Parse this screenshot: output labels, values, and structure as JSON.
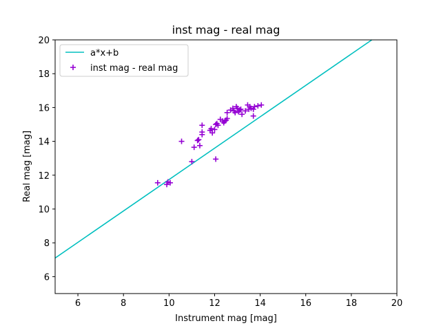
{
  "chart_data": {
    "type": "scatter",
    "title": "inst mag - real mag",
    "xlabel": "Instrument mag [mag]",
    "ylabel": "Real mag [mag]",
    "xlim": [
      5,
      20
    ],
    "ylim": [
      5,
      20
    ],
    "xticks": [
      6,
      8,
      10,
      12,
      14,
      16,
      18,
      20
    ],
    "yticks": [
      6,
      8,
      10,
      12,
      14,
      16,
      18,
      20
    ],
    "grid": false,
    "legend_placement": "upper-left",
    "line": {
      "name": "a*x+b",
      "color": "#00bfbf",
      "x": [
        5,
        18.9
      ],
      "y": [
        7.1,
        20.0
      ]
    },
    "series": [
      {
        "name": "inst mag - real mag",
        "color": "#9400d3",
        "marker": "+",
        "points": [
          [
            9.5,
            11.55
          ],
          [
            9.9,
            11.45
          ],
          [
            9.95,
            11.6
          ],
          [
            10.05,
            11.55
          ],
          [
            10.55,
            14.0
          ],
          [
            11.0,
            12.8
          ],
          [
            11.1,
            13.65
          ],
          [
            11.25,
            14.05
          ],
          [
            11.3,
            14.1
          ],
          [
            11.35,
            13.75
          ],
          [
            11.45,
            14.4
          ],
          [
            11.45,
            14.55
          ],
          [
            11.45,
            14.95
          ],
          [
            11.8,
            14.65
          ],
          [
            11.85,
            14.75
          ],
          [
            11.9,
            14.5
          ],
          [
            12.0,
            14.7
          ],
          [
            12.05,
            15.0
          ],
          [
            12.05,
            12.95
          ],
          [
            12.1,
            15.05
          ],
          [
            12.15,
            14.95
          ],
          [
            12.25,
            15.3
          ],
          [
            12.35,
            15.2
          ],
          [
            12.4,
            15.1
          ],
          [
            12.45,
            15.2
          ],
          [
            12.5,
            15.25
          ],
          [
            12.55,
            15.35
          ],
          [
            12.55,
            15.7
          ],
          [
            12.7,
            15.85
          ],
          [
            12.8,
            15.95
          ],
          [
            12.85,
            15.8
          ],
          [
            12.9,
            15.7
          ],
          [
            12.95,
            16.05
          ],
          [
            13.0,
            15.95
          ],
          [
            13.05,
            15.75
          ],
          [
            13.1,
            15.85
          ],
          [
            13.15,
            15.9
          ],
          [
            13.2,
            15.6
          ],
          [
            13.35,
            15.8
          ],
          [
            13.45,
            16.15
          ],
          [
            13.5,
            15.9
          ],
          [
            13.55,
            16.05
          ],
          [
            13.6,
            15.95
          ],
          [
            13.7,
            15.9
          ],
          [
            13.7,
            15.5
          ],
          [
            13.75,
            16.05
          ],
          [
            13.9,
            16.1
          ],
          [
            14.05,
            16.15
          ]
        ]
      }
    ]
  }
}
